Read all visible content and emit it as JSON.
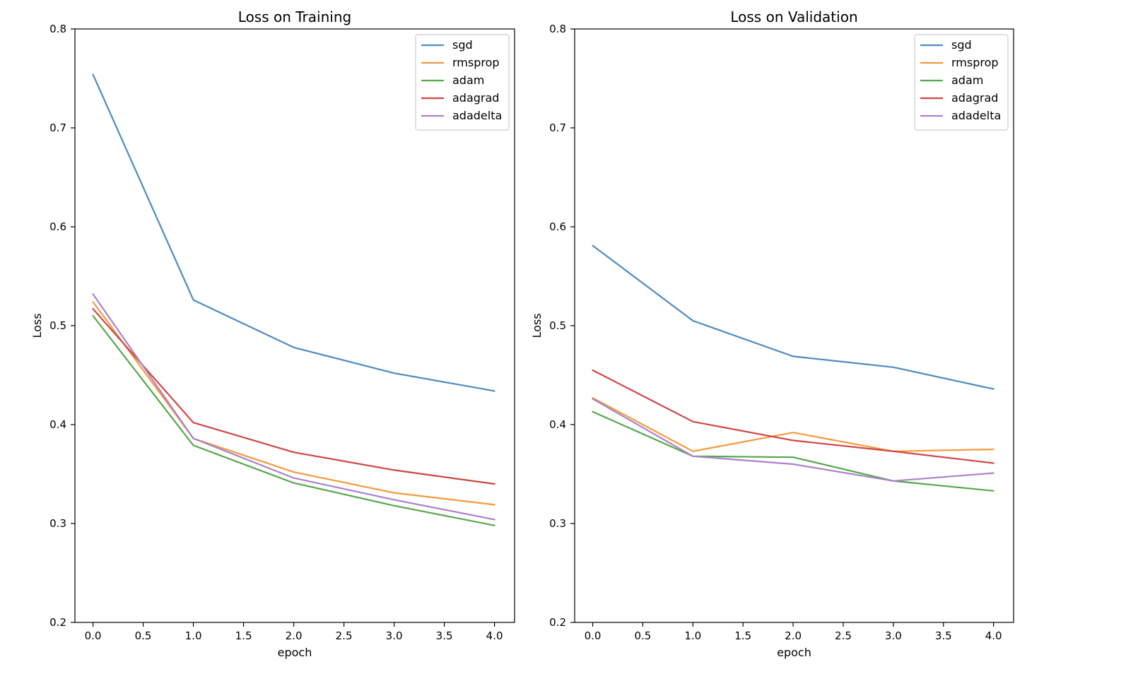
{
  "chart_data": [
    {
      "type": "line",
      "title": "Loss on Training",
      "xlabel": "epoch",
      "ylabel": "Loss",
      "xlim": [
        -0.18,
        4.2
      ],
      "ylim": [
        0.2,
        0.8
      ],
      "xticks": [
        0.0,
        0.5,
        1.0,
        1.5,
        2.0,
        2.5,
        3.0,
        3.5,
        4.0
      ],
      "xtick_labels": [
        "0.0",
        "0.5",
        "1.0",
        "1.5",
        "2.0",
        "2.5",
        "3.0",
        "3.5",
        "4.0"
      ],
      "yticks": [
        0.2,
        0.3,
        0.4,
        0.5,
        0.6,
        0.7,
        0.8
      ],
      "ytick_labels": [
        "0.2",
        "0.3",
        "0.4",
        "0.5",
        "0.6",
        "0.7",
        "0.8"
      ],
      "legend_position": "top-right",
      "grid": false,
      "x": [
        0,
        1,
        2,
        3,
        4
      ],
      "series": [
        {
          "name": "sgd",
          "color": "#4c8bbf",
          "values": [
            0.754,
            0.526,
            0.478,
            0.452,
            0.434
          ]
        },
        {
          "name": "rmsprop",
          "color": "#f59a3c",
          "values": [
            0.524,
            0.386,
            0.352,
            0.331,
            0.319
          ]
        },
        {
          "name": "adam",
          "color": "#55a84b",
          "values": [
            0.51,
            0.379,
            0.341,
            0.318,
            0.298
          ]
        },
        {
          "name": "adagrad",
          "color": "#cf4645",
          "values": [
            0.517,
            0.402,
            0.372,
            0.354,
            0.34
          ]
        },
        {
          "name": "adadelta",
          "color": "#a982cc",
          "values": [
            0.532,
            0.386,
            0.346,
            0.324,
            0.304
          ]
        }
      ]
    },
    {
      "type": "line",
      "title": "Loss on Validation",
      "xlabel": "epoch",
      "ylabel": "Loss",
      "xlim": [
        -0.18,
        4.2
      ],
      "ylim": [
        0.2,
        0.8
      ],
      "xticks": [
        0.0,
        0.5,
        1.0,
        1.5,
        2.0,
        2.5,
        3.0,
        3.5,
        4.0
      ],
      "xtick_labels": [
        "0.0",
        "0.5",
        "1.0",
        "1.5",
        "2.0",
        "2.5",
        "3.0",
        "3.5",
        "4.0"
      ],
      "yticks": [
        0.2,
        0.3,
        0.4,
        0.5,
        0.6,
        0.7,
        0.8
      ],
      "ytick_labels": [
        "0.2",
        "0.3",
        "0.4",
        "0.5",
        "0.6",
        "0.7",
        "0.8"
      ],
      "legend_position": "top-right",
      "grid": false,
      "x": [
        0,
        1,
        2,
        3,
        4
      ],
      "series": [
        {
          "name": "sgd",
          "color": "#4c8bbf",
          "values": [
            0.581,
            0.505,
            0.469,
            0.458,
            0.436
          ]
        },
        {
          "name": "rmsprop",
          "color": "#f59a3c",
          "values": [
            0.427,
            0.373,
            0.392,
            0.373,
            0.375
          ]
        },
        {
          "name": "adam",
          "color": "#55a84b",
          "values": [
            0.413,
            0.368,
            0.367,
            0.343,
            0.333
          ]
        },
        {
          "name": "adagrad",
          "color": "#cf4645",
          "values": [
            0.455,
            0.403,
            0.384,
            0.373,
            0.361
          ]
        },
        {
          "name": "adadelta",
          "color": "#a982cc",
          "values": [
            0.426,
            0.368,
            0.36,
            0.343,
            0.351
          ]
        }
      ]
    }
  ]
}
